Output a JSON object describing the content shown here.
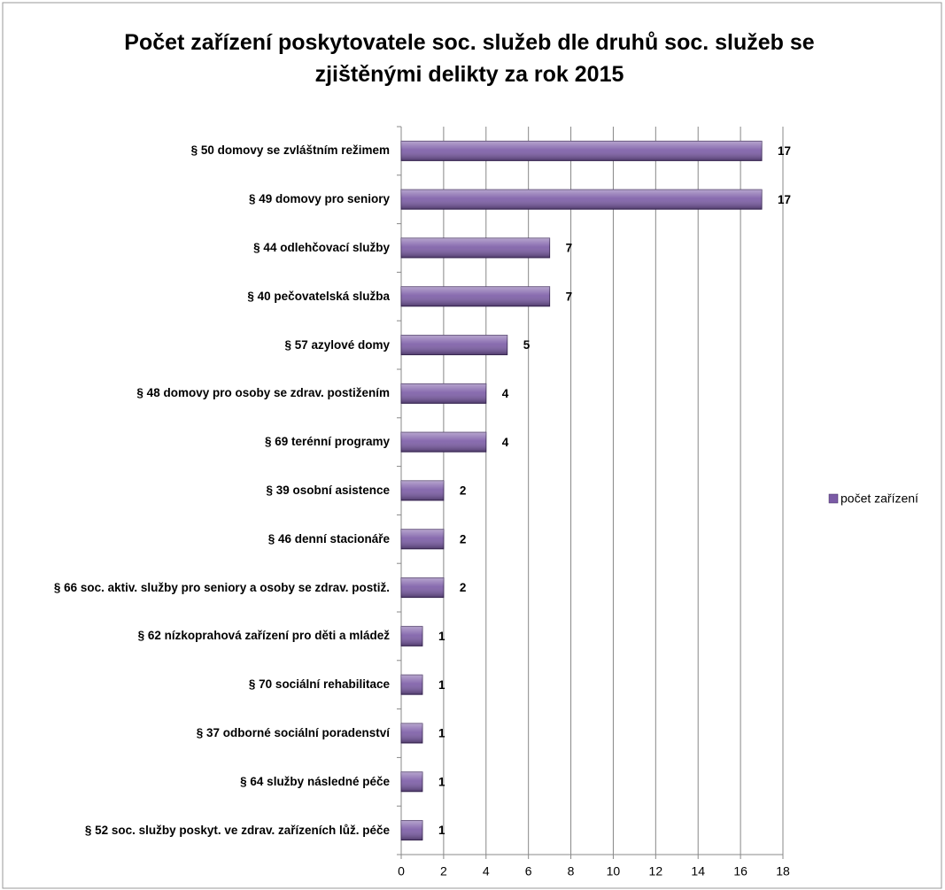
{
  "chart_data": {
    "type": "bar",
    "orientation": "horizontal",
    "title": "Počet zařízení poskytovatele soc. služeb dle druhů soc. služeb se zjištěnými delikty za rok 2015",
    "categories": [
      "§ 50 domovy se zvláštním režimem",
      "§ 49 domovy pro seniory",
      "§ 44 odlehčovací služby",
      "§ 40 pečovatelská služba",
      "§ 57 azylové domy",
      "§ 48 domovy pro osoby se zdrav. postižením",
      "§ 69 terénní programy",
      "§ 39 osobní asistence",
      "§ 46 denní stacionáře",
      "§ 66 soc. aktiv. služby pro seniory a osoby se zdrav. postiž.",
      "§ 62 nízkoprahová zařízení pro děti a mládež",
      "§ 70 sociální rehabilitace",
      "§ 37 odborné sociální poradenství",
      "§ 64 služby následné péče",
      "§ 52 soc. služby poskyt. ve zdrav. zařízeních lůž. péče"
    ],
    "series": [
      {
        "name": "počet zařízení",
        "color": "#7b5ba6",
        "values": [
          17,
          17,
          7,
          7,
          5,
          4,
          4,
          2,
          2,
          2,
          1,
          1,
          1,
          1,
          1
        ]
      }
    ],
    "xlim": [
      0,
      18
    ],
    "xticks": [
      0,
      2,
      4,
      6,
      8,
      10,
      12,
      14,
      16,
      18
    ],
    "grid": true,
    "legend": "right"
  }
}
